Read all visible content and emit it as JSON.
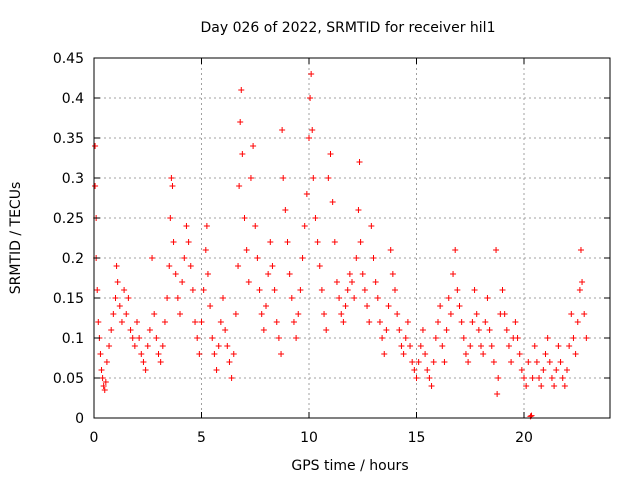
{
  "chart_data": {
    "type": "scatter",
    "title": "Day 026 of 2022, SRMTID for receiver hil1",
    "xlabel": "GPS time / hours",
    "ylabel": "SRMTID / TECUs",
    "xlim": [
      0,
      24
    ],
    "ylim": [
      0,
      0.45
    ],
    "xticks": [
      0,
      5,
      10,
      15,
      20
    ],
    "xtick_labels": [
      "0",
      "5",
      "10",
      "15",
      "20"
    ],
    "yticks": [
      0,
      0.05,
      0.1,
      0.15,
      0.2,
      0.25,
      0.3,
      0.35,
      0.4,
      0.45
    ],
    "ytick_labels": [
      "0",
      "0.05",
      "0.1",
      "0.15",
      "0.2",
      "0.25",
      "0.3",
      "0.35",
      "0.4",
      "0.45"
    ],
    "grid": true,
    "marker": "+",
    "color": "#ff0000",
    "series": [
      {
        "name": "SRMTID",
        "points": [
          [
            0.05,
            0.34
          ],
          [
            0.05,
            0.29
          ],
          [
            0.1,
            0.25
          ],
          [
            0.1,
            0.2
          ],
          [
            0.15,
            0.16
          ],
          [
            0.2,
            0.12
          ],
          [
            0.25,
            0.1
          ],
          [
            0.3,
            0.08
          ],
          [
            0.35,
            0.06
          ],
          [
            0.4,
            0.05
          ],
          [
            0.45,
            0.04
          ],
          [
            0.5,
            0.035
          ],
          [
            0.55,
            0.045
          ],
          [
            0.6,
            0.07
          ],
          [
            0.7,
            0.09
          ],
          [
            0.8,
            0.11
          ],
          [
            0.9,
            0.13
          ],
          [
            1.0,
            0.15
          ],
          [
            1.05,
            0.19
          ],
          [
            1.1,
            0.17
          ],
          [
            1.2,
            0.14
          ],
          [
            1.3,
            0.12
          ],
          [
            1.4,
            0.16
          ],
          [
            1.5,
            0.13
          ],
          [
            1.6,
            0.15
          ],
          [
            1.7,
            0.11
          ],
          [
            1.8,
            0.1
          ],
          [
            1.9,
            0.09
          ],
          [
            2.0,
            0.12
          ],
          [
            2.1,
            0.1
          ],
          [
            2.2,
            0.08
          ],
          [
            2.3,
            0.07
          ],
          [
            2.4,
            0.06
          ],
          [
            2.5,
            0.09
          ],
          [
            2.6,
            0.11
          ],
          [
            2.7,
            0.2
          ],
          [
            2.8,
            0.13
          ],
          [
            2.9,
            0.1
          ],
          [
            3.0,
            0.08
          ],
          [
            3.1,
            0.07
          ],
          [
            3.2,
            0.09
          ],
          [
            3.3,
            0.12
          ],
          [
            3.4,
            0.15
          ],
          [
            3.5,
            0.19
          ],
          [
            3.55,
            0.25
          ],
          [
            3.6,
            0.3
          ],
          [
            3.65,
            0.29
          ],
          [
            3.7,
            0.22
          ],
          [
            3.8,
            0.18
          ],
          [
            3.9,
            0.15
          ],
          [
            4.0,
            0.13
          ],
          [
            4.1,
            0.17
          ],
          [
            4.2,
            0.2
          ],
          [
            4.3,
            0.24
          ],
          [
            4.4,
            0.22
          ],
          [
            4.5,
            0.19
          ],
          [
            4.6,
            0.16
          ],
          [
            4.7,
            0.12
          ],
          [
            4.8,
            0.1
          ],
          [
            4.9,
            0.08
          ],
          [
            5.0,
            0.12
          ],
          [
            5.1,
            0.16
          ],
          [
            5.2,
            0.21
          ],
          [
            5.25,
            0.24
          ],
          [
            5.3,
            0.18
          ],
          [
            5.4,
            0.14
          ],
          [
            5.5,
            0.1
          ],
          [
            5.6,
            0.08
          ],
          [
            5.7,
            0.06
          ],
          [
            5.8,
            0.09
          ],
          [
            5.9,
            0.12
          ],
          [
            6.0,
            0.15
          ],
          [
            6.1,
            0.11
          ],
          [
            6.2,
            0.09
          ],
          [
            6.3,
            0.07
          ],
          [
            6.4,
            0.05
          ],
          [
            6.5,
            0.08
          ],
          [
            6.6,
            0.13
          ],
          [
            6.7,
            0.19
          ],
          [
            6.75,
            0.29
          ],
          [
            6.8,
            0.37
          ],
          [
            6.85,
            0.41
          ],
          [
            6.9,
            0.33
          ],
          [
            7.0,
            0.25
          ],
          [
            7.1,
            0.21
          ],
          [
            7.2,
            0.17
          ],
          [
            7.3,
            0.3
          ],
          [
            7.4,
            0.34
          ],
          [
            7.5,
            0.24
          ],
          [
            7.6,
            0.2
          ],
          [
            7.7,
            0.16
          ],
          [
            7.8,
            0.13
          ],
          [
            7.9,
            0.11
          ],
          [
            8.0,
            0.14
          ],
          [
            8.1,
            0.18
          ],
          [
            8.2,
            0.22
          ],
          [
            8.3,
            0.19
          ],
          [
            8.4,
            0.16
          ],
          [
            8.5,
            0.12
          ],
          [
            8.6,
            0.1
          ],
          [
            8.7,
            0.08
          ],
          [
            8.75,
            0.36
          ],
          [
            8.8,
            0.3
          ],
          [
            8.9,
            0.26
          ],
          [
            9.0,
            0.22
          ],
          [
            9.1,
            0.18
          ],
          [
            9.2,
            0.15
          ],
          [
            9.3,
            0.12
          ],
          [
            9.4,
            0.1
          ],
          [
            9.5,
            0.13
          ],
          [
            9.6,
            0.16
          ],
          [
            9.7,
            0.2
          ],
          [
            9.8,
            0.24
          ],
          [
            9.9,
            0.28
          ],
          [
            10.0,
            0.35
          ],
          [
            10.05,
            0.4
          ],
          [
            10.1,
            0.43
          ],
          [
            10.15,
            0.36
          ],
          [
            10.2,
            0.3
          ],
          [
            10.3,
            0.25
          ],
          [
            10.4,
            0.22
          ],
          [
            10.5,
            0.19
          ],
          [
            10.6,
            0.16
          ],
          [
            10.7,
            0.13
          ],
          [
            10.8,
            0.11
          ],
          [
            10.9,
            0.3
          ],
          [
            11.0,
            0.33
          ],
          [
            11.1,
            0.27
          ],
          [
            11.2,
            0.22
          ],
          [
            11.3,
            0.17
          ],
          [
            11.4,
            0.15
          ],
          [
            11.5,
            0.13
          ],
          [
            11.6,
            0.12
          ],
          [
            11.7,
            0.14
          ],
          [
            11.8,
            0.16
          ],
          [
            11.9,
            0.18
          ],
          [
            12.0,
            0.17
          ],
          [
            12.1,
            0.15
          ],
          [
            12.2,
            0.2
          ],
          [
            12.3,
            0.26
          ],
          [
            12.35,
            0.32
          ],
          [
            12.4,
            0.22
          ],
          [
            12.5,
            0.18
          ],
          [
            12.6,
            0.16
          ],
          [
            12.7,
            0.14
          ],
          [
            12.8,
            0.12
          ],
          [
            12.9,
            0.24
          ],
          [
            13.0,
            0.2
          ],
          [
            13.1,
            0.17
          ],
          [
            13.2,
            0.15
          ],
          [
            13.3,
            0.12
          ],
          [
            13.4,
            0.1
          ],
          [
            13.5,
            0.08
          ],
          [
            13.6,
            0.11
          ],
          [
            13.7,
            0.14
          ],
          [
            13.8,
            0.21
          ],
          [
            13.9,
            0.18
          ],
          [
            14.0,
            0.16
          ],
          [
            14.1,
            0.13
          ],
          [
            14.2,
            0.11
          ],
          [
            14.3,
            0.09
          ],
          [
            14.4,
            0.08
          ],
          [
            14.5,
            0.1
          ],
          [
            14.6,
            0.12
          ],
          [
            14.7,
            0.09
          ],
          [
            14.8,
            0.07
          ],
          [
            14.9,
            0.06
          ],
          [
            15.0,
            0.05
          ],
          [
            15.1,
            0.07
          ],
          [
            15.2,
            0.09
          ],
          [
            15.3,
            0.11
          ],
          [
            15.4,
            0.08
          ],
          [
            15.5,
            0.06
          ],
          [
            15.6,
            0.05
          ],
          [
            15.7,
            0.04
          ],
          [
            15.8,
            0.07
          ],
          [
            15.9,
            0.1
          ],
          [
            16.0,
            0.12
          ],
          [
            16.1,
            0.14
          ],
          [
            16.2,
            0.09
          ],
          [
            16.3,
            0.07
          ],
          [
            16.4,
            0.11
          ],
          [
            16.5,
            0.15
          ],
          [
            16.6,
            0.13
          ],
          [
            16.7,
            0.18
          ],
          [
            16.8,
            0.21
          ],
          [
            16.9,
            0.16
          ],
          [
            17.0,
            0.14
          ],
          [
            17.1,
            0.12
          ],
          [
            17.2,
            0.1
          ],
          [
            17.3,
            0.08
          ],
          [
            17.4,
            0.07
          ],
          [
            17.5,
            0.09
          ],
          [
            17.6,
            0.12
          ],
          [
            17.7,
            0.16
          ],
          [
            17.8,
            0.13
          ],
          [
            17.9,
            0.11
          ],
          [
            18.0,
            0.09
          ],
          [
            18.1,
            0.08
          ],
          [
            18.2,
            0.12
          ],
          [
            18.3,
            0.15
          ],
          [
            18.4,
            0.11
          ],
          [
            18.5,
            0.09
          ],
          [
            18.6,
            0.07
          ],
          [
            18.7,
            0.21
          ],
          [
            18.75,
            0.03
          ],
          [
            18.8,
            0.05
          ],
          [
            18.9,
            0.13
          ],
          [
            19.0,
            0.16
          ],
          [
            19.1,
            0.13
          ],
          [
            19.2,
            0.11
          ],
          [
            19.3,
            0.09
          ],
          [
            19.4,
            0.07
          ],
          [
            19.5,
            0.1
          ],
          [
            19.6,
            0.12
          ],
          [
            19.7,
            0.1
          ],
          [
            19.8,
            0.08
          ],
          [
            19.9,
            0.06
          ],
          [
            20.0,
            0.05
          ],
          [
            20.1,
            0.04
          ],
          [
            20.2,
            0.07
          ],
          [
            20.3,
            0.002
          ],
          [
            20.35,
            0.003
          ],
          [
            20.4,
            0.05
          ],
          [
            20.5,
            0.09
          ],
          [
            20.6,
            0.07
          ],
          [
            20.7,
            0.05
          ],
          [
            20.8,
            0.04
          ],
          [
            20.9,
            0.06
          ],
          [
            21.0,
            0.08
          ],
          [
            21.1,
            0.1
          ],
          [
            21.2,
            0.07
          ],
          [
            21.3,
            0.05
          ],
          [
            21.4,
            0.04
          ],
          [
            21.5,
            0.06
          ],
          [
            21.6,
            0.09
          ],
          [
            21.7,
            0.07
          ],
          [
            21.8,
            0.05
          ],
          [
            21.9,
            0.04
          ],
          [
            22.0,
            0.06
          ],
          [
            22.1,
            0.09
          ],
          [
            22.2,
            0.13
          ],
          [
            22.3,
            0.1
          ],
          [
            22.4,
            0.08
          ],
          [
            22.5,
            0.12
          ],
          [
            22.6,
            0.16
          ],
          [
            22.65,
            0.21
          ],
          [
            22.7,
            0.17
          ],
          [
            22.8,
            0.13
          ],
          [
            22.9,
            0.1
          ]
        ]
      }
    ]
  }
}
